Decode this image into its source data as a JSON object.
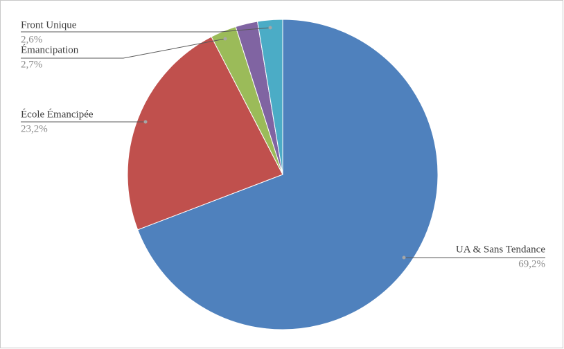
{
  "chart_data": {
    "type": "pie",
    "categories": [
      "UA & Sans Tendance",
      "École Émancipée",
      "Émancipation",
      null,
      "Front Unique"
    ],
    "values": [
      69.2,
      23.2,
      2.7,
      2.3,
      2.6
    ],
    "value_labels": [
      "69,2%",
      "23,2%",
      "2,7%",
      null,
      "2,6%"
    ],
    "colors": [
      "#4f81bd",
      "#c0504d",
      "#9bbb59",
      "#8064a2",
      "#4bacc6"
    ]
  }
}
